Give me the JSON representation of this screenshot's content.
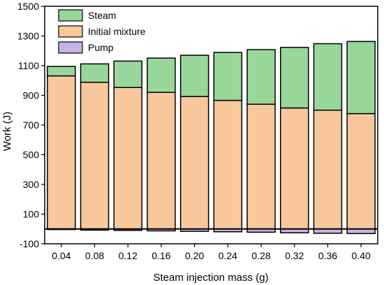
{
  "chart_data": {
    "type": "bar",
    "stacked": true,
    "xlabel": "Steam injection mass (g)",
    "ylabel": "Work (J)",
    "ylim": [
      -100,
      1500
    ],
    "yticks": [
      -100,
      100,
      300,
      500,
      700,
      900,
      1100,
      1300,
      1500
    ],
    "categories": [
      "0.04",
      "0.08",
      "0.12",
      "0.16",
      "0.20",
      "0.24",
      "0.28",
      "0.32",
      "0.36",
      "0.40"
    ],
    "legend_position": "top-left",
    "series": [
      {
        "name": "Steam",
        "color": "#99d69a",
        "values": [
          64,
          124,
          178,
          231,
          278,
          323,
          368,
          408,
          448,
          486
        ]
      },
      {
        "name": "Initial mixture",
        "color": "#f9c79c",
        "values": [
          1031,
          988,
          953,
          920,
          892,
          866,
          840,
          815,
          800,
          777
        ]
      },
      {
        "name": "Pump",
        "color": "#c7b3e3",
        "values": [
          -4,
          -8,
          -10,
          -13,
          -16,
          -19,
          -22,
          -26,
          -29,
          -31
        ]
      }
    ]
  }
}
